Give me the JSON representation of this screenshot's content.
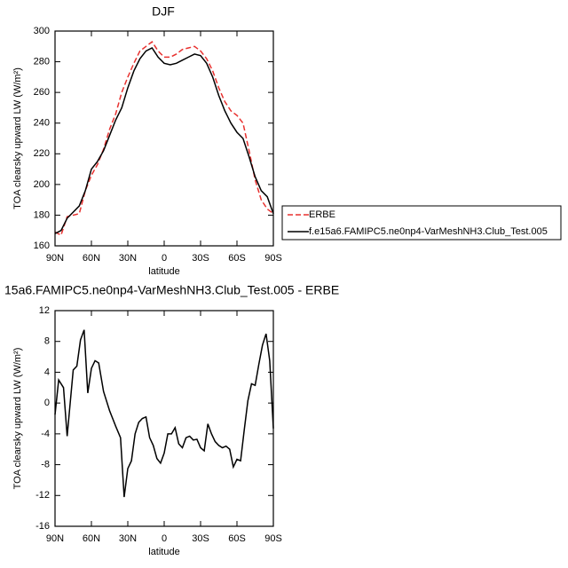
{
  "chart_data": [
    {
      "type": "line",
      "title": "DJF",
      "x_label": "latitude",
      "y_label": "TOA clearsky upward LW (W/m²)",
      "x": [
        90,
        85,
        80,
        75,
        70,
        65,
        60,
        55,
        50,
        45,
        40,
        35,
        30,
        25,
        20,
        15,
        10,
        5,
        0,
        -5,
        -10,
        -15,
        -20,
        -25,
        -30,
        -35,
        -40,
        -45,
        -50,
        -55,
        -60,
        -65,
        -70,
        -75,
        -80,
        -85,
        -90
      ],
      "series": [
        {
          "name": "ERBE",
          "color": "#e8312f",
          "line_style": "dashed",
          "values": [
            169,
            167,
            179,
            180,
            181,
            196,
            206,
            213,
            223,
            236,
            246,
            260,
            270,
            279,
            287,
            290,
            293,
            287,
            283,
            283,
            285,
            288,
            289,
            290,
            287,
            282,
            274,
            263,
            254,
            248,
            245,
            240,
            222,
            203,
            190,
            184,
            181
          ]
        },
        {
          "name": "f.e15a6.FAMIPC5.ne0np4-VarMeshNH3.Club_Test.005",
          "color": "#000000",
          "line_style": "solid",
          "values": [
            168,
            170,
            178,
            182,
            186,
            196,
            210,
            215,
            222,
            232,
            242,
            250,
            263,
            274,
            282,
            287,
            289,
            283,
            279,
            278,
            279,
            281,
            283,
            285,
            284,
            279,
            270,
            258,
            248,
            240,
            234,
            230,
            218,
            205,
            196,
            192,
            181
          ]
        }
      ],
      "xlim": [
        90,
        -90
      ],
      "xticks": [
        {
          "value": 90,
          "label": "90N"
        },
        {
          "value": 60,
          "label": "60N"
        },
        {
          "value": 30,
          "label": "30N"
        },
        0,
        {
          "value": -30,
          "label": "30S"
        },
        {
          "value": -60,
          "label": "60S"
        },
        {
          "value": -90,
          "label": "90S"
        }
      ],
      "ylim": [
        160,
        300
      ],
      "yticks": [
        160,
        180,
        200,
        220,
        240,
        260,
        280,
        300
      ],
      "legend": "right"
    },
    {
      "type": "line",
      "title": "15a6.FAMIPC5.ne0np4-VarMeshNH3.Club_Test.005 - ERBE",
      "x_label": "latitude",
      "y_label": "TOA clearsky upward LW (W/m²)",
      "x": [
        90,
        87,
        83,
        80,
        75,
        72,
        69,
        66,
        63,
        60,
        57,
        54,
        50,
        45,
        40,
        36,
        33,
        30,
        27,
        24,
        21,
        18,
        15,
        12,
        9,
        6,
        3,
        0,
        -3,
        -6,
        -9,
        -12,
        -15,
        -18,
        -21,
        -24,
        -27,
        -30,
        -33,
        -36,
        -39,
        -42,
        -45,
        -48,
        -51,
        -54,
        -57,
        -60,
        -63,
        -66,
        -69,
        -72,
        -75,
        -78,
        -81,
        -84,
        -87,
        -90
      ],
      "values": [
        -1.5,
        3,
        2,
        -4.3,
        4.3,
        4.8,
        8.2,
        9.5,
        1.3,
        4.5,
        5.5,
        5.2,
        1.5,
        -1,
        -3,
        -4.5,
        -12.2,
        -8.5,
        -7.5,
        -4,
        -2.5,
        -2,
        -1.8,
        -4.5,
        -5.5,
        -7.2,
        -7.8,
        -6.5,
        -4,
        -4,
        -3.2,
        -5.3,
        -5.8,
        -4.5,
        -4.3,
        -4.8,
        -4.7,
        -5.8,
        -6.2,
        -2.7,
        -4,
        -5,
        -5.5,
        -5.8,
        -5.6,
        -6,
        -8.3,
        -7.3,
        -7.5,
        -3.5,
        0.3,
        2.5,
        2.3,
        5,
        7.5,
        9,
        5.5,
        -3.3
      ],
      "color": "#000000",
      "xlim": [
        90,
        -90
      ],
      "xticks": [
        {
          "value": 90,
          "label": "90N"
        },
        {
          "value": 60,
          "label": "60N"
        },
        {
          "value": 30,
          "label": "30N"
        },
        0,
        {
          "value": -30,
          "label": "30S"
        },
        {
          "value": -60,
          "label": "60S"
        },
        {
          "value": -90,
          "label": "90S"
        }
      ],
      "ylim": [
        -16,
        12
      ],
      "yticks": [
        -16,
        -12,
        -8,
        -4,
        0,
        4,
        8,
        12
      ]
    }
  ]
}
